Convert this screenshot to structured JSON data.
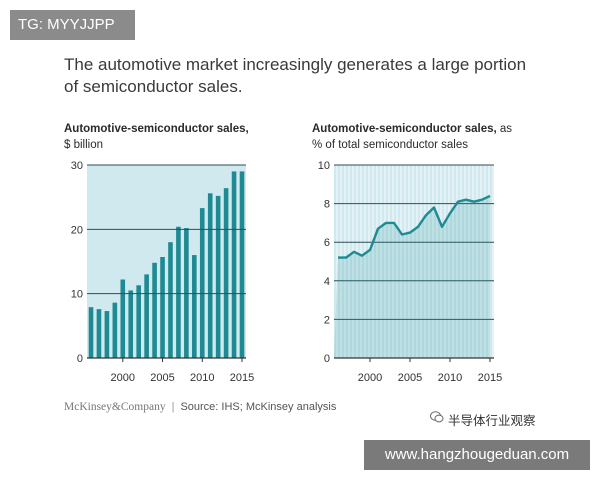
{
  "watermark_tag": "TG: MYYJJPP",
  "headline": {
    "line1": "The automotive market increasingly generates a large portion",
    "line2": "of semiconductor sales."
  },
  "colors": {
    "bar": "#1f8a93",
    "plot_bg": "#cfe9ee",
    "line": "#1f8a93",
    "gridline": "#2b4f57"
  },
  "chart_data": [
    {
      "type": "bar",
      "title_bold": "Automotive-semiconductor sales,",
      "title_rest": "",
      "subtitle": "$ billion",
      "x": [
        1996,
        1997,
        1998,
        1999,
        2000,
        2001,
        2002,
        2003,
        2004,
        2005,
        2006,
        2007,
        2008,
        2009,
        2010,
        2011,
        2012,
        2013,
        2014,
        2015
      ],
      "values": [
        7.9,
        7.6,
        7.3,
        8.6,
        12.2,
        10.5,
        11.3,
        13.0,
        14.8,
        15.7,
        18.0,
        20.4,
        20.2,
        16.0,
        23.3,
        25.6,
        25.2,
        26.4,
        29.0,
        29.0
      ],
      "xticks": [
        "2000",
        "2005",
        "2010",
        "2015"
      ],
      "yticks": [
        "0",
        "10",
        "20",
        "30"
      ],
      "ylim": [
        0,
        30
      ]
    },
    {
      "type": "line",
      "title_bold": "Automotive-semiconductor sales,",
      "title_rest": " as",
      "subtitle": "% of total semiconductor sales",
      "x": [
        1996,
        1997,
        1998,
        1999,
        2000,
        2001,
        2002,
        2003,
        2004,
        2005,
        2006,
        2007,
        2008,
        2009,
        2010,
        2011,
        2012,
        2013,
        2014,
        2015
      ],
      "values": [
        5.2,
        5.2,
        5.5,
        5.3,
        5.6,
        6.7,
        7.0,
        7.0,
        6.4,
        6.5,
        6.8,
        7.4,
        7.8,
        6.8,
        7.5,
        8.1,
        8.2,
        8.1,
        8.2,
        8.4
      ],
      "xticks": [
        "2000",
        "2005",
        "2010",
        "2015"
      ],
      "yticks": [
        "0",
        "2",
        "4",
        "6",
        "8",
        "10"
      ],
      "ylim": [
        0,
        10
      ]
    }
  ],
  "footer": {
    "brand": "McKinsey&Company",
    "source": "Source: IHS; McKinsey analysis"
  },
  "wechat_label": "半导体行业观察",
  "url_tag": "www.hangzhougeduan.com"
}
